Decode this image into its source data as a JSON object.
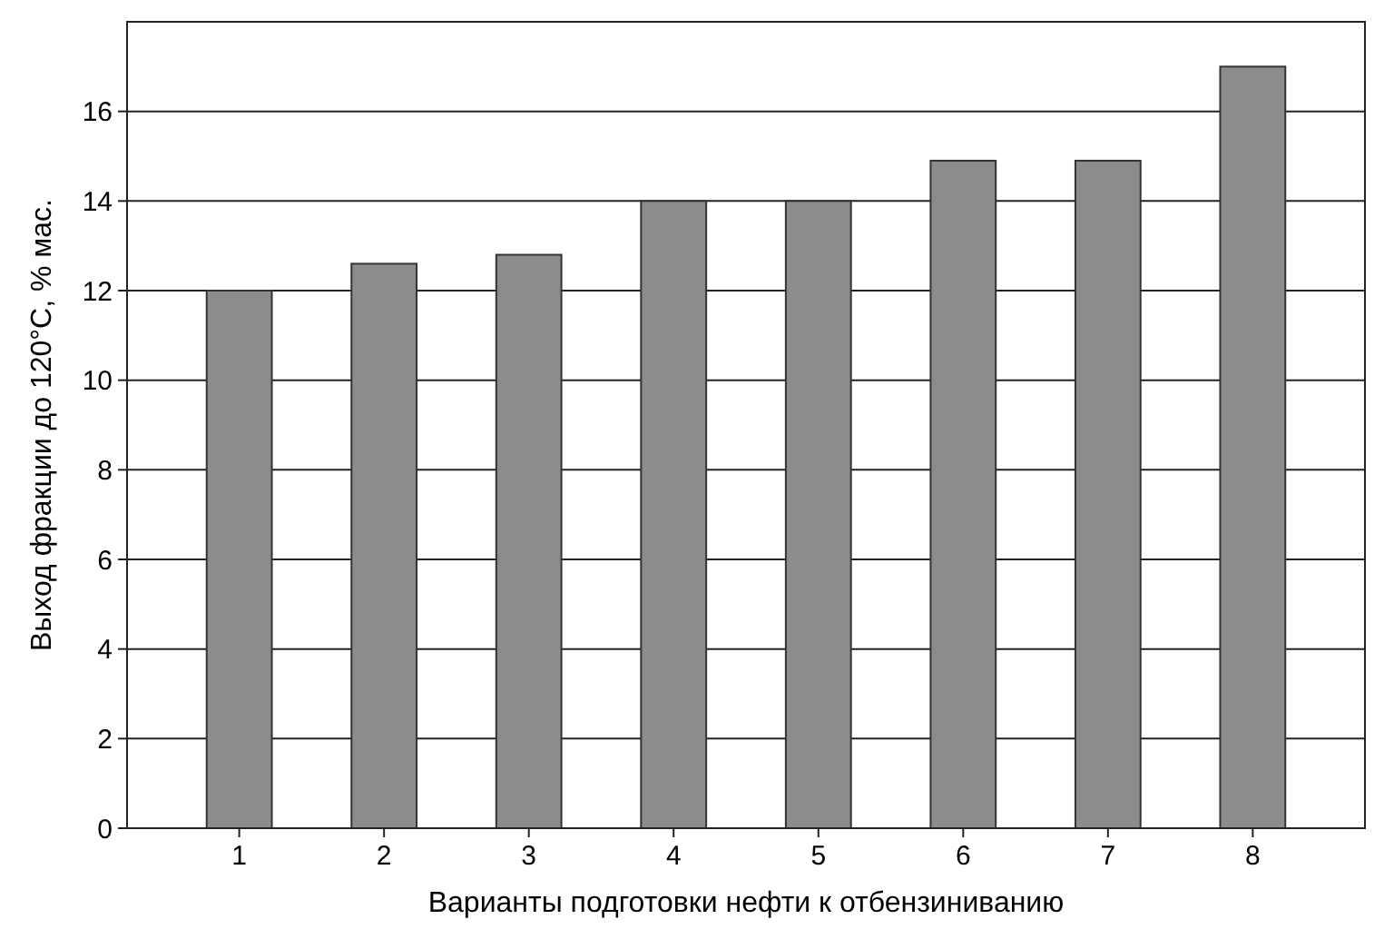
{
  "chart_data": {
    "type": "bar",
    "xlabel": "Варианты подготовки нефти к отбензиниванию",
    "ylabel": "Выход фракции до 120°C, % мас.",
    "categories": [
      "1",
      "2",
      "3",
      "4",
      "5",
      "6",
      "7",
      "8"
    ],
    "values": [
      12,
      12.6,
      12.8,
      14,
      14,
      14.9,
      14.9,
      17
    ],
    "color": "#8c8c8e",
    "ylim": [
      0,
      18
    ],
    "yticks": [
      0,
      2,
      4,
      6,
      8,
      10,
      12,
      14,
      16
    ],
    "grid": "y"
  }
}
